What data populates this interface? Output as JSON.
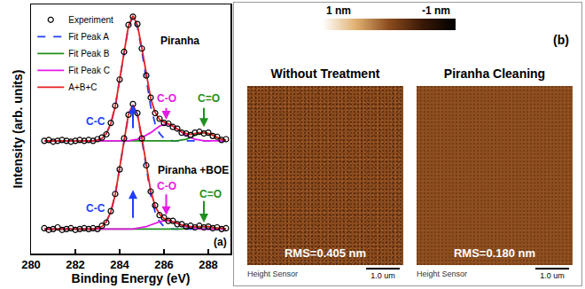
{
  "chart_data": {
    "type": "line",
    "x_label": "Binding Energy (eV)",
    "y_label": "Intensity (arb. units)",
    "xlim": [
      280,
      289
    ],
    "xticks": [
      280,
      282,
      284,
      286,
      288
    ],
    "ylim": [
      -0.1,
      2.95
    ],
    "grid": false,
    "tick_labels": "x",
    "legend": "upper left",
    "x": [
      280.6,
      280.8,
      281.0,
      281.2,
      281.4,
      281.6,
      281.8,
      282.0,
      282.2,
      282.4,
      282.6,
      282.8,
      283.0,
      283.2,
      283.4,
      283.6,
      283.8,
      284.0,
      284.2,
      284.4,
      284.6,
      284.8,
      285.0,
      285.2,
      285.4,
      285.6,
      285.8,
      286.0,
      286.2,
      286.4,
      286.6,
      286.8,
      287.0,
      287.2,
      287.4,
      287.6,
      287.8,
      288.0,
      288.2,
      288.4,
      288.6,
      288.8
    ],
    "series": [
      {
        "name": "Experiment",
        "type": "scatter",
        "marker": "circle-open",
        "color": "#000000",
        "values": [
          1.28,
          1.29,
          1.27,
          1.28,
          1.29,
          1.28,
          1.27,
          1.28,
          1.29,
          1.28,
          1.29,
          1.28,
          1.3,
          1.32,
          1.36,
          1.5,
          1.71,
          2.03,
          2.37,
          2.7,
          2.8,
          2.71,
          2.41,
          2.08,
          1.81,
          1.62,
          1.55,
          1.5,
          1.49,
          1.45,
          1.43,
          1.38,
          1.37,
          1.35,
          1.38,
          1.39,
          1.37,
          1.38,
          1.34,
          1.33,
          1.29,
          1.3
        ]
      },
      {
        "name": "Fit Peak A",
        "type": "line",
        "line_style": "dash",
        "color": "#1e3cff",
        "values": [
          1.28,
          1.28,
          1.28,
          1.28,
          1.28,
          1.28,
          1.28,
          1.28,
          1.28,
          1.28,
          1.28,
          1.28,
          1.29,
          1.31,
          1.37,
          1.49,
          1.7,
          2.02,
          2.38,
          2.68,
          2.8,
          2.68,
          2.38,
          2.02,
          1.7,
          1.49,
          1.37,
          1.31,
          1.29,
          1.28,
          1.28,
          1.28,
          1.28,
          1.28,
          1.28,
          1.28,
          1.28,
          1.28,
          1.28,
          1.28,
          1.28,
          1.28
        ]
      },
      {
        "name": "Fit Peak B",
        "type": "line",
        "line_style": "solid",
        "color": "#1f8f1f",
        "values": [
          1.28,
          1.28,
          1.28,
          1.28,
          1.28,
          1.28,
          1.28,
          1.28,
          1.28,
          1.28,
          1.28,
          1.28,
          1.28,
          1.28,
          1.28,
          1.28,
          1.28,
          1.28,
          1.28,
          1.28,
          1.28,
          1.28,
          1.28,
          1.28,
          1.28,
          1.28,
          1.28,
          1.28,
          1.28,
          1.28,
          1.28,
          1.29,
          1.3,
          1.32,
          1.35,
          1.37,
          1.38,
          1.37,
          1.35,
          1.32,
          1.3,
          1.29
        ]
      },
      {
        "name": "Fit Peak C",
        "type": "line",
        "line_style": "solid",
        "color": "#e619e6",
        "values": [
          1.28,
          1.28,
          1.28,
          1.28,
          1.28,
          1.28,
          1.28,
          1.28,
          1.28,
          1.28,
          1.28,
          1.28,
          1.28,
          1.28,
          1.28,
          1.28,
          1.28,
          1.28,
          1.28,
          1.28,
          1.29,
          1.3,
          1.32,
          1.35,
          1.38,
          1.42,
          1.46,
          1.48,
          1.48,
          1.46,
          1.42,
          1.38,
          1.35,
          1.32,
          1.3,
          1.29,
          1.28,
          1.28,
          1.28,
          1.28,
          1.28,
          1.28
        ]
      },
      {
        "name": "A+B+C",
        "type": "line",
        "line_style": "solid",
        "color": "#e62020",
        "values": [
          1.28,
          1.28,
          1.28,
          1.28,
          1.28,
          1.28,
          1.28,
          1.28,
          1.28,
          1.28,
          1.28,
          1.28,
          1.29,
          1.31,
          1.37,
          1.49,
          1.7,
          2.02,
          2.38,
          2.69,
          2.81,
          2.7,
          2.42,
          2.09,
          1.8,
          1.63,
          1.54,
          1.51,
          1.49,
          1.46,
          1.42,
          1.39,
          1.37,
          1.36,
          1.37,
          1.38,
          1.38,
          1.37,
          1.35,
          1.32,
          1.3,
          1.29
        ]
      },
      {
        "name": "Experiment",
        "type": "scatter",
        "marker": "circle-open",
        "color": "#000000",
        "values": [
          0.21,
          0.19,
          0.2,
          0.22,
          0.19,
          0.2,
          0.21,
          0.19,
          0.2,
          0.21,
          0.2,
          0.21,
          0.2,
          0.24,
          0.28,
          0.42,
          0.63,
          0.93,
          1.31,
          1.6,
          1.73,
          1.62,
          1.31,
          0.98,
          0.66,
          0.49,
          0.37,
          0.34,
          0.3,
          0.3,
          0.26,
          0.26,
          0.23,
          0.24,
          0.22,
          0.24,
          0.22,
          0.23,
          0.21,
          0.22,
          0.2,
          0.21
        ]
      },
      {
        "name": "Fit Peak A",
        "type": "line",
        "line_style": "dash",
        "color": "#1e3cff",
        "values": [
          0.2,
          0.2,
          0.2,
          0.2,
          0.2,
          0.2,
          0.2,
          0.2,
          0.2,
          0.2,
          0.2,
          0.2,
          0.21,
          0.23,
          0.29,
          0.41,
          0.62,
          0.94,
          1.3,
          1.6,
          1.72,
          1.6,
          1.3,
          0.94,
          0.62,
          0.41,
          0.29,
          0.23,
          0.21,
          0.2,
          0.2,
          0.2,
          0.2,
          0.2,
          0.2,
          0.2,
          0.2,
          0.2,
          0.2,
          0.2,
          0.2,
          0.2
        ]
      },
      {
        "name": "Fit Peak B",
        "type": "line",
        "line_style": "solid",
        "color": "#1f8f1f",
        "values": [
          0.2,
          0.2,
          0.2,
          0.2,
          0.2,
          0.2,
          0.2,
          0.2,
          0.2,
          0.2,
          0.2,
          0.2,
          0.2,
          0.2,
          0.2,
          0.2,
          0.2,
          0.2,
          0.2,
          0.2,
          0.2,
          0.2,
          0.2,
          0.2,
          0.2,
          0.2,
          0.2,
          0.2,
          0.2,
          0.2,
          0.2,
          0.2,
          0.21,
          0.21,
          0.22,
          0.23,
          0.23,
          0.23,
          0.22,
          0.21,
          0.21,
          0.2
        ]
      },
      {
        "name": "Fit Peak C",
        "type": "line",
        "line_style": "solid",
        "color": "#e619e6",
        "values": [
          0.2,
          0.2,
          0.2,
          0.2,
          0.2,
          0.2,
          0.2,
          0.2,
          0.2,
          0.2,
          0.2,
          0.2,
          0.2,
          0.2,
          0.2,
          0.2,
          0.2,
          0.2,
          0.2,
          0.2,
          0.2,
          0.21,
          0.22,
          0.23,
          0.25,
          0.27,
          0.29,
          0.3,
          0.3,
          0.29,
          0.27,
          0.25,
          0.23,
          0.22,
          0.21,
          0.2,
          0.2,
          0.2,
          0.2,
          0.2,
          0.2,
          0.2
        ]
      },
      {
        "name": "A+B+C",
        "type": "line",
        "line_style": "solid",
        "color": "#e62020",
        "values": [
          0.2,
          0.2,
          0.2,
          0.2,
          0.2,
          0.2,
          0.2,
          0.2,
          0.2,
          0.2,
          0.2,
          0.2,
          0.21,
          0.23,
          0.29,
          0.41,
          0.62,
          0.94,
          1.3,
          1.61,
          1.72,
          1.61,
          1.32,
          0.97,
          0.67,
          0.48,
          0.38,
          0.33,
          0.31,
          0.29,
          0.27,
          0.25,
          0.24,
          0.23,
          0.23,
          0.23,
          0.23,
          0.23,
          0.22,
          0.21,
          0.21,
          0.2
        ]
      }
    ],
    "annotations": [
      {
        "text": "Piranha",
        "x": 286.7,
        "y": 2.5,
        "color": "#000000"
      },
      {
        "text": "C-C",
        "x": 282.9,
        "y": 1.52,
        "color": "#1e3cff",
        "arrow": {
          "tail": [
            284.6,
            1.42
          ],
          "head": [
            284.6,
            1.72
          ]
        }
      },
      {
        "text": "C-O",
        "x": 286.1,
        "y": 1.8,
        "color": "#e619e6",
        "arrow": {
          "tail": [
            286.1,
            1.7
          ],
          "head": [
            286.1,
            1.54
          ]
        }
      },
      {
        "text": "C=O",
        "x": 288.0,
        "y": 1.8,
        "color": "#1f8f1f",
        "arrow": {
          "tail": [
            287.8,
            1.7
          ],
          "head": [
            287.8,
            1.45
          ]
        }
      },
      {
        "text": "Piranha +BOE",
        "x": 287.3,
        "y": 0.92,
        "color": "#000000"
      },
      {
        "text": "C-C",
        "x": 282.9,
        "y": 0.45,
        "color": "#1e3cff",
        "arrow": {
          "tail": [
            284.6,
            0.32
          ],
          "head": [
            284.6,
            0.68
          ]
        }
      },
      {
        "text": "C-O",
        "x": 286.1,
        "y": 0.72,
        "color": "#e619e6",
        "arrow": {
          "tail": [
            286.1,
            0.64
          ],
          "head": [
            286.1,
            0.37
          ]
        }
      },
      {
        "text": "C=O",
        "x": 288.1,
        "y": 0.63,
        "color": "#1f8f1f",
        "arrow": {
          "tail": [
            287.8,
            0.56
          ],
          "head": [
            287.8,
            0.28
          ]
        }
      },
      {
        "text": "(a)",
        "x": 288.55,
        "y": 0.04,
        "color": "#000000"
      }
    ]
  },
  "afm_panel": {
    "panel_label": "(b)",
    "colorbar": {
      "max_label": "1 nm",
      "min_label": "-1 nm",
      "colors": [
        "#ffffff",
        "#e0b070",
        "#8a4b1d",
        "#3a1806",
        "#000000"
      ]
    },
    "images": [
      {
        "title": "Without Treatment",
        "rms": "RMS=0.405 nm",
        "sensor": "Height Sensor",
        "scale_bar": "1.0 um"
      },
      {
        "title": "Piranha Cleaning",
        "rms": "RMS=0.180 nm",
        "sensor": "Height Sensor",
        "scale_bar": "1.0 um"
      }
    ]
  }
}
